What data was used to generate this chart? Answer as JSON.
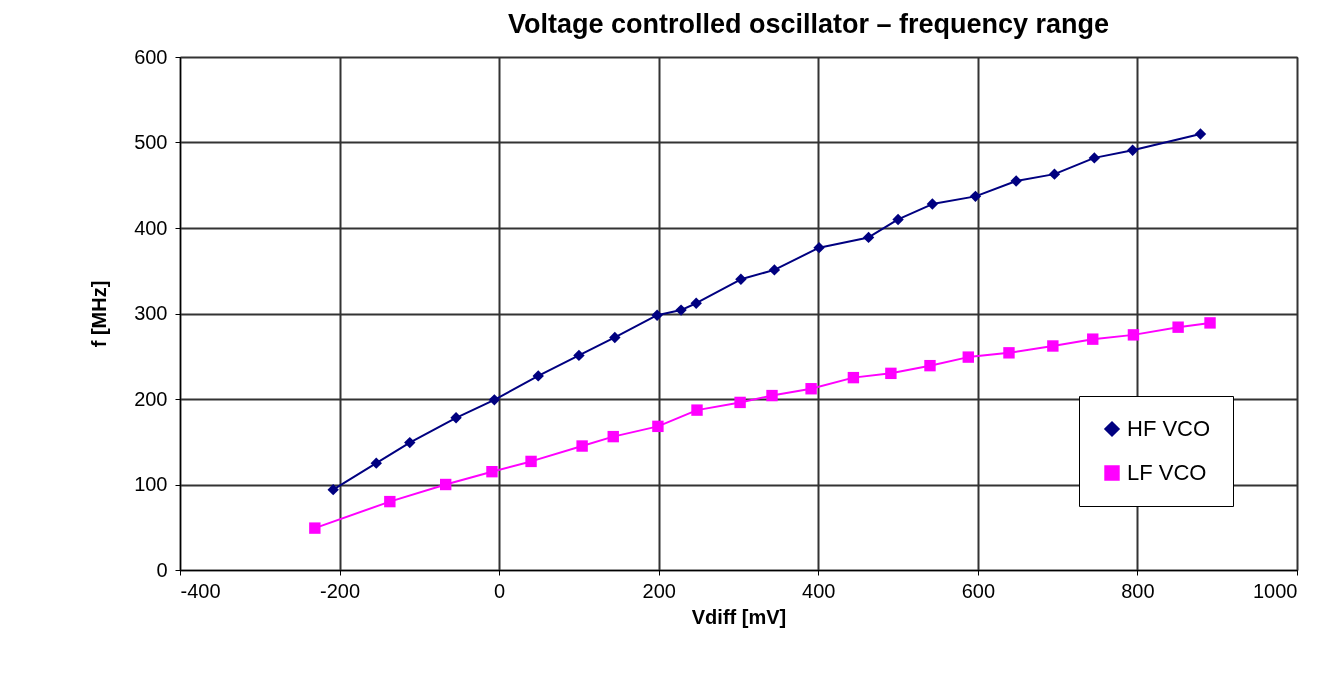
{
  "chart_data": {
    "type": "line",
    "title": "Voltage controlled oscillator – frequency range",
    "xlabel": "Vdiff [mV]",
    "ylabel": "f [MHz]",
    "xlim": [
      -400,
      1000
    ],
    "xticks": [
      -400,
      -200,
      0,
      200,
      400,
      600,
      800,
      1000
    ],
    "ylim": [
      0,
      600
    ],
    "yticks": [
      0,
      100,
      200,
      300,
      400,
      500,
      600
    ],
    "grid": true,
    "legend": "bottom right",
    "series": [
      {
        "name": "HF VCO",
        "color": "#000080",
        "marker": "diamond",
        "x": [
          -208,
          -154,
          -112,
          -54,
          -6,
          49,
          100,
          145,
          198,
          228,
          247,
          303,
          345,
          401,
          463,
          500,
          543,
          597,
          648,
          696,
          746,
          794,
          879
        ],
        "values": [
          94,
          125,
          149,
          178,
          199,
          227,
          251,
          272,
          298,
          304,
          312,
          340,
          351,
          377,
          389,
          410,
          428,
          437,
          455,
          463,
          482,
          491,
          510
        ]
      },
      {
        "name": "LF VCO",
        "color": "#ff00ff",
        "marker": "square",
        "x": [
          -231,
          -137,
          -67,
          -9,
          40,
          104,
          143,
          199,
          248,
          302,
          342,
          391,
          444,
          491,
          540,
          588,
          639,
          694,
          744,
          795,
          851,
          891
        ],
        "values": [
          49,
          80,
          100,
          115,
          127,
          145,
          156,
          168,
          187,
          196,
          204,
          212,
          225,
          230,
          239,
          249,
          254,
          262,
          270,
          275,
          284,
          289
        ]
      }
    ]
  }
}
